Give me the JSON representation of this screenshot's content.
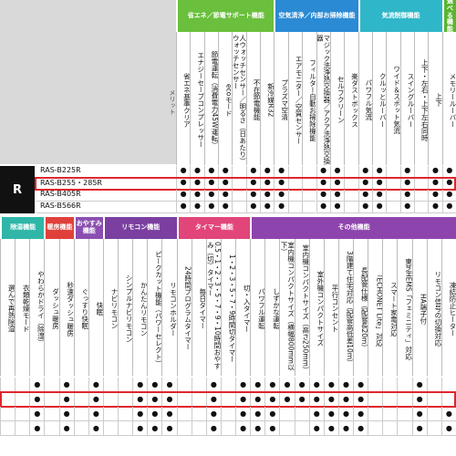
{
  "top": {
    "merit_label": "メリット",
    "series_label": "R",
    "groups": [
      {
        "label": "省エネ／節電サポート機能",
        "color": "#6abf3c",
        "span": 7
      },
      {
        "label": "空気清浄／内部お掃除機能",
        "color": "#2a8ad4",
        "span": 6
      },
      {
        "label": "気流制御機能",
        "color": "#2fb6c8",
        "span": 6
      },
      {
        "label": "選べる機能",
        "color": "#5bb531",
        "span": 1
      }
    ],
    "columns": [
      "省エネ基準クリア",
      "エナジーセーブコンプレッサー",
      "節電運転（消費電力45W運転）",
      "ecoモード",
      "人ウォッチセンサー／明るさ（日あたり）ウォッチセンサー",
      "不在節電機能",
      "新冷媒R32",
      "プラズマ空清",
      "エアモニター／空質センサー",
      "フィルター自動お掃除機能",
      "マジック洗浄熱交換器／アクア洗浄熱交換器",
      "セルフクリーン",
      "楽ダストボックス",
      "パワフル気流",
      "クルッとルーバー",
      "ワイド＆スポット気流",
      "スイングルーバー",
      "上下・左右・上下左右同時",
      "上下",
      "メモリールーバー"
    ],
    "highlighted_row": 1,
    "rows": [
      {
        "model": "RAS-B225R",
        "cells": [
          "●",
          "●",
          "●",
          "●",
          null,
          "●",
          "●",
          "●",
          null,
          null,
          "●",
          "●",
          null,
          "●",
          "●",
          null,
          "●",
          null,
          "●",
          "●"
        ]
      },
      {
        "model": "RAS-B255・285R",
        "cells": [
          "●",
          "●",
          "●",
          "●",
          null,
          "●",
          "●",
          "●",
          null,
          null,
          "●",
          "●",
          null,
          "●",
          "●",
          null,
          "●",
          null,
          "●",
          "●"
        ]
      },
      {
        "model": "RAS-B405R",
        "cells": [
          "●",
          "●",
          "●",
          "●",
          null,
          "●",
          "●",
          "●",
          null,
          null,
          "●",
          "●",
          null,
          "●",
          "●",
          null,
          "●",
          null,
          "●",
          "●"
        ]
      },
      {
        "model": "RAS-B566R",
        "cells": [
          "●",
          "●",
          "●",
          "●",
          null,
          "●",
          "●",
          "●",
          null,
          null,
          "●",
          "●",
          null,
          "●",
          "●",
          null,
          "●",
          null,
          "●",
          "●"
        ]
      }
    ]
  },
  "bottom": {
    "groups": [
      {
        "label": "除湿機能",
        "color": "#2fb6a8",
        "span": 3
      },
      {
        "label": "暖房機能",
        "color": "#e0403a",
        "span": 2
      },
      {
        "label": "おやすみ機能",
        "color": "#8a4fb0",
        "span": 2
      },
      {
        "label": "リモコン機能",
        "color": "#7a3fa0",
        "span": 5
      },
      {
        "label": "タイマー機能",
        "color": "#e2457a",
        "span": 5
      },
      {
        "label": "その他機能",
        "color": "#8e44ad",
        "span": 14
      }
    ],
    "columns": [
      "選んで再熱除湿",
      "衣類乾燥モード",
      "やわらかドライ（除湿）",
      "ダッシュ暖房",
      "秒速ダッシュ暖房",
      "ぐっすり快眠",
      "快眠",
      "ナビリモコン",
      "シンプルナビリモコン",
      "かんたんリモコン",
      "ピークカット機能（パワーセレクト）",
      "リモコンホルダー",
      "24時間プログラムタイマー",
      "毎日タイマー",
      "0.5・1・2・3・5・7・9・10時間おやすみ（切）タイマー",
      "1・2・3・5・7・9時間切タイマー",
      "切・入タイマー",
      "パワフル運転",
      "しずかな運転",
      "室内機コンパクトサイズ（横幅800mm以下）",
      "室内機コンパクトサイズ（高さ250mm）",
      "室外機コンパクトサイズ",
      "平行コンセント",
      "3階建て住宅対応（配管高低差10m）",
      "長配管仕様（配管長20m）",
      "「ECHONET Lite」対応",
      "スマート家電対応",
      "東芝HEMS「フェミニティ」対応",
      "HA端子付",
      "リモコン信号の切換対応",
      "凍結防止ヒーター"
    ],
    "highlighted_row": 1,
    "rows": [
      {
        "cells": [
          null,
          null,
          "●",
          null,
          "●",
          null,
          "●",
          null,
          null,
          "●",
          "●",
          "●",
          null,
          null,
          "●",
          null,
          "●",
          "●",
          "●",
          "●",
          "●",
          "●",
          "●",
          "●",
          "●",
          null,
          null,
          null,
          "●",
          null,
          null
        ]
      },
      {
        "cells": [
          null,
          null,
          "●",
          null,
          "●",
          null,
          "●",
          null,
          null,
          "●",
          "●",
          "●",
          null,
          null,
          "●",
          null,
          "●",
          "●",
          "●",
          "●",
          "●",
          "●",
          "●",
          "●",
          "●",
          null,
          null,
          null,
          "●",
          null,
          null
        ]
      },
      {
        "cells": [
          null,
          null,
          "●",
          null,
          "●",
          null,
          "●",
          null,
          null,
          "●",
          "●",
          "●",
          null,
          null,
          "●",
          null,
          "●",
          "●",
          "●",
          null,
          null,
          "●",
          "●",
          "●",
          "●",
          null,
          null,
          null,
          "●",
          null,
          "●"
        ]
      },
      {
        "cells": [
          null,
          null,
          "●",
          null,
          "●",
          null,
          "●",
          null,
          null,
          "●",
          "●",
          "●",
          null,
          null,
          "●",
          null,
          "●",
          "●",
          "●",
          null,
          null,
          "●",
          "●",
          "●",
          "●",
          null,
          null,
          null,
          "●",
          null,
          "●"
        ]
      }
    ]
  }
}
